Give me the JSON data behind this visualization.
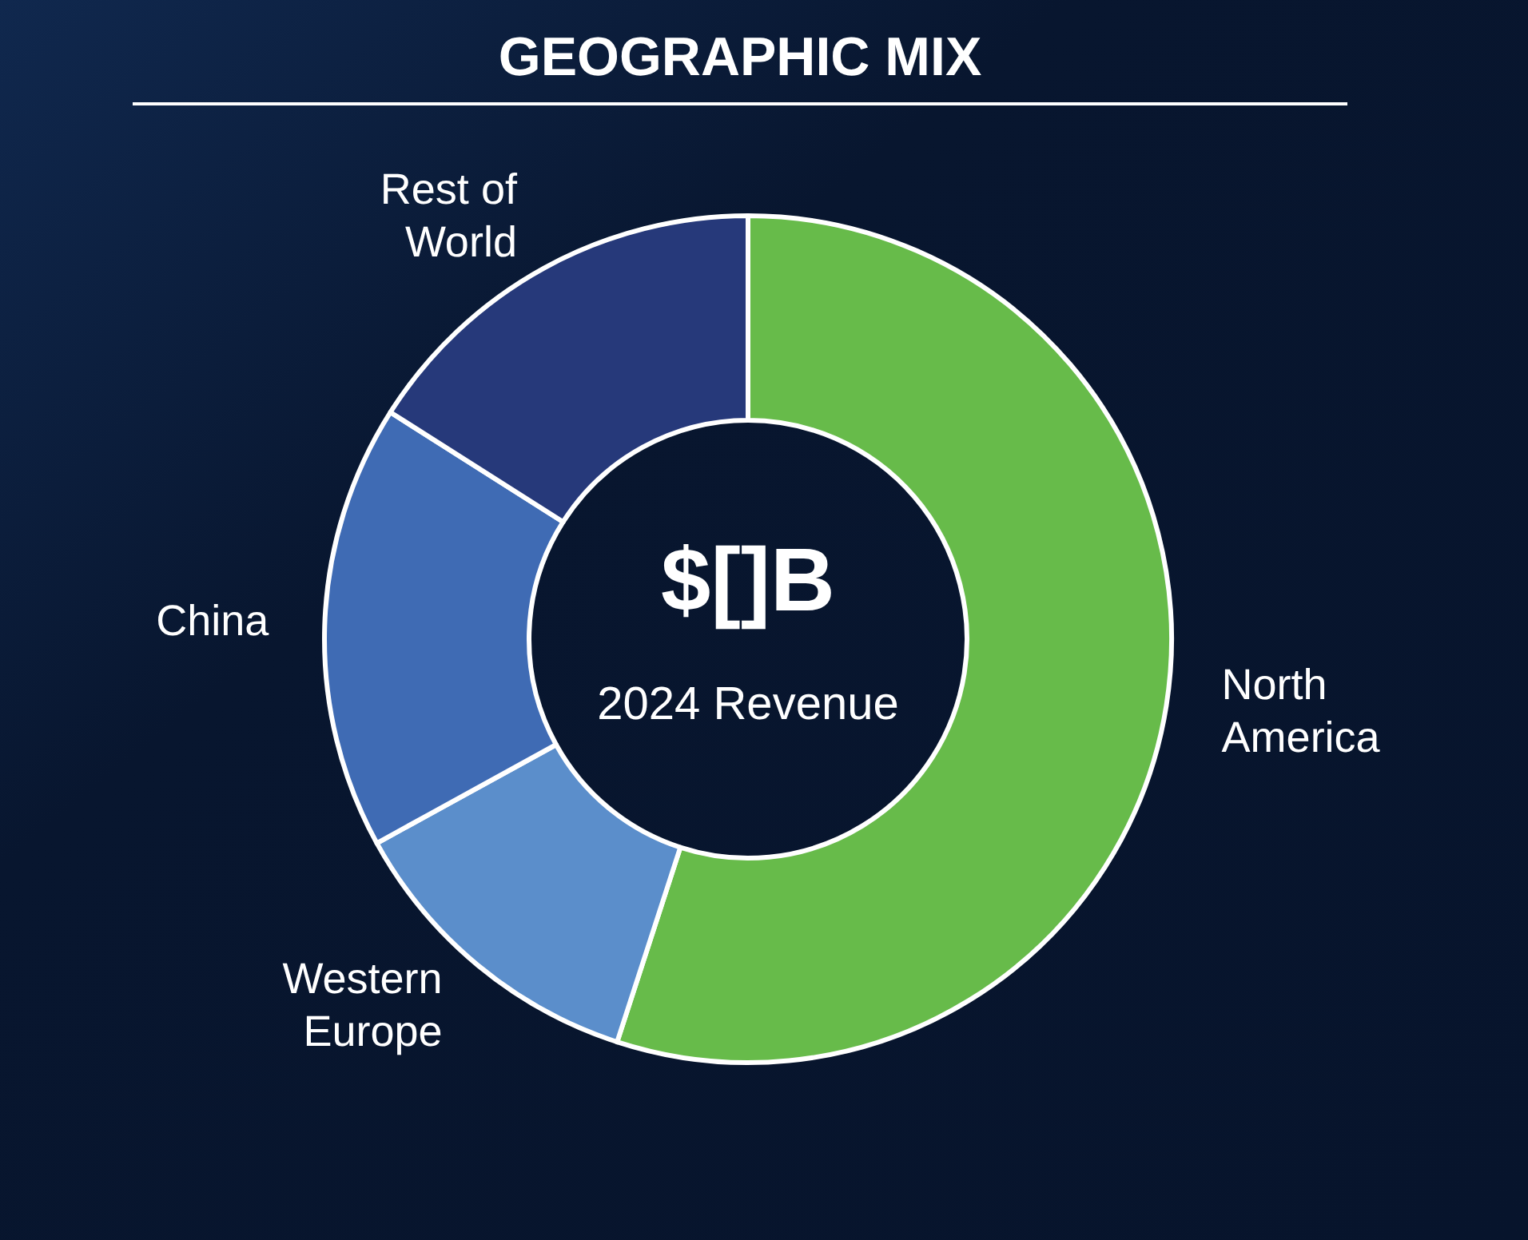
{
  "chart_data": {
    "type": "donut",
    "title": "GEOGRAPHIC MIX",
    "categories": [
      "North America",
      "Western Europe",
      "China",
      "Rest of World"
    ],
    "values": [
      55,
      12,
      17,
      16
    ],
    "colors": [
      "#67bb4a",
      "#5b8ecb",
      "#3f6bb4",
      "#26397a"
    ],
    "annotations": [
      "$[]B",
      "2024 Revenue"
    ]
  }
}
